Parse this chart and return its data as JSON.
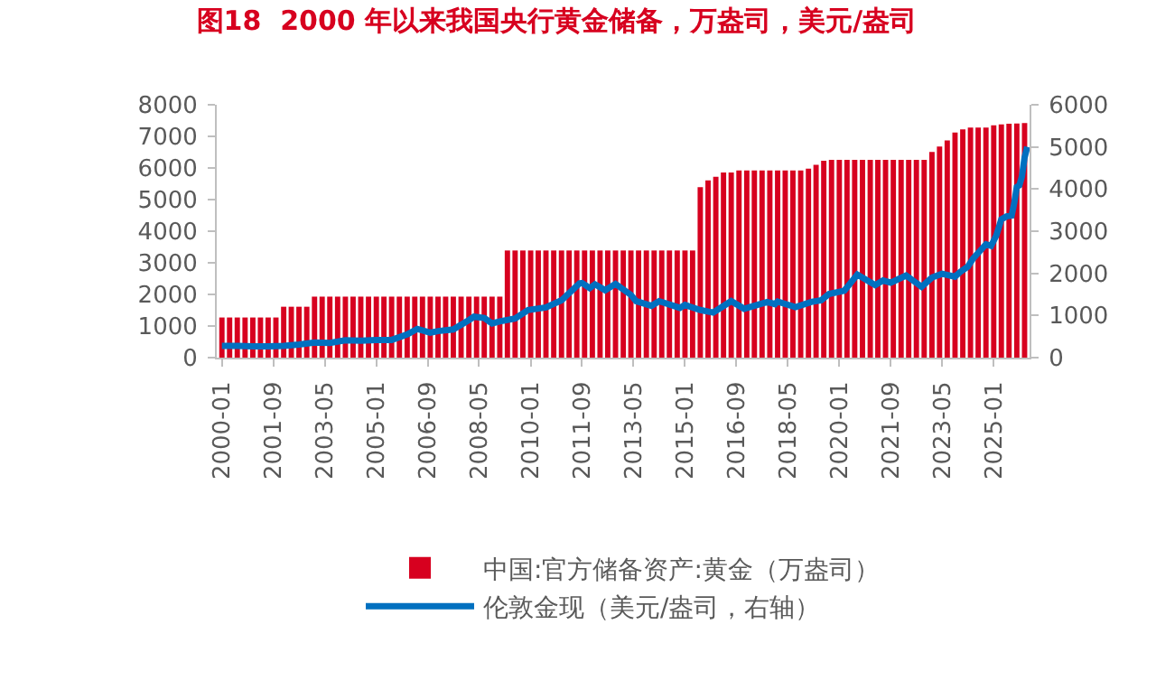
{
  "chart_data": {
    "type": "bar",
    "title": "图18  2000 年以来我国央行黄金储备，万盎司，美元/盎司",
    "xlim": [
      "1999-11",
      "2026-03"
    ],
    "xticks": [
      "2000-01",
      "2001-09",
      "2003-05",
      "2005-01",
      "2006-09",
      "2008-05",
      "2010-01",
      "2011-09",
      "2013-05",
      "2015-01",
      "2016-09",
      "2018-05",
      "2020-01",
      "2021-09",
      "2023-05",
      "2025-01"
    ],
    "ylim": [
      0,
      8000
    ],
    "yticks": [
      0,
      1000,
      2000,
      3000,
      4000,
      5000,
      6000,
      7000,
      8000
    ],
    "y2lim": [
      0,
      6000
    ],
    "y2ticks": [
      0,
      1000,
      2000,
      3000,
      4000,
      5000,
      6000
    ],
    "legend": "bottom",
    "series": [
      {
        "name": "中国:官方储备资产:黄金（万盎司）",
        "color": "#d7001f",
        "x": [
          "2000-01",
          "2000-04",
          "2000-07",
          "2000-10",
          "2001-01",
          "2001-04",
          "2001-07",
          "2001-10",
          "2002-01",
          "2002-04",
          "2002-07",
          "2002-10",
          "2003-01",
          "2003-04",
          "2003-07",
          "2003-10",
          "2004-01",
          "2004-04",
          "2004-07",
          "2004-10",
          "2005-01",
          "2005-04",
          "2005-07",
          "2005-10",
          "2006-01",
          "2006-04",
          "2006-07",
          "2006-10",
          "2007-01",
          "2007-04",
          "2007-07",
          "2007-10",
          "2008-01",
          "2008-04",
          "2008-07",
          "2008-10",
          "2009-01",
          "2009-04",
          "2009-07",
          "2009-10",
          "2010-01",
          "2010-04",
          "2010-07",
          "2010-10",
          "2011-01",
          "2011-04",
          "2011-07",
          "2011-10",
          "2012-01",
          "2012-04",
          "2012-07",
          "2012-10",
          "2013-01",
          "2013-04",
          "2013-07",
          "2013-10",
          "2014-01",
          "2014-04",
          "2014-07",
          "2014-10",
          "2015-01",
          "2015-04",
          "2015-07",
          "2015-10",
          "2016-01",
          "2016-04",
          "2016-07",
          "2016-10",
          "2017-01",
          "2017-04",
          "2017-07",
          "2017-10",
          "2018-01",
          "2018-04",
          "2018-07",
          "2018-10",
          "2019-01",
          "2019-04",
          "2019-07",
          "2019-10",
          "2020-01",
          "2020-04",
          "2020-07",
          "2020-10",
          "2021-01",
          "2021-04",
          "2021-07",
          "2021-10",
          "2022-01",
          "2022-04",
          "2022-07",
          "2022-10",
          "2023-01",
          "2023-04",
          "2023-07",
          "2023-10",
          "2024-01",
          "2024-04",
          "2024-07",
          "2024-10",
          "2025-01",
          "2025-04",
          "2025-07",
          "2025-10",
          "2026-01"
        ],
        "values": [
          1270,
          1270,
          1270,
          1270,
          1270,
          1270,
          1270,
          1270,
          1610,
          1610,
          1610,
          1610,
          1930,
          1930,
          1930,
          1930,
          1930,
          1930,
          1930,
          1930,
          1930,
          1930,
          1930,
          1930,
          1930,
          1930,
          1930,
          1930,
          1930,
          1930,
          1930,
          1930,
          1930,
          1930,
          1930,
          1930,
          1930,
          3390,
          3390,
          3390,
          3390,
          3390,
          3390,
          3390,
          3390,
          3390,
          3390,
          3390,
          3390,
          3390,
          3390,
          3390,
          3390,
          3390,
          3390,
          3390,
          3390,
          3390,
          3390,
          3390,
          3390,
          3390,
          5390,
          5610,
          5720,
          5860,
          5860,
          5920,
          5920,
          5920,
          5920,
          5920,
          5920,
          5920,
          5920,
          5920,
          5980,
          6100,
          6230,
          6260,
          6260,
          6260,
          6260,
          6260,
          6260,
          6260,
          6260,
          6260,
          6260,
          6260,
          6260,
          6260,
          6510,
          6680,
          6870,
          7120,
          7220,
          7280,
          7280,
          7280,
          7350,
          7380,
          7400,
          7410,
          7420
        ]
      },
      {
        "name": "伦敦金现（美元/盎司，右轴）",
        "type": "line",
        "axis": "y2",
        "color": "#0070c0",
        "line_style": "solid",
        "marker": "none",
        "x": [
          "2000-01",
          "2000-07",
          "2001-01",
          "2001-07",
          "2002-01",
          "2002-07",
          "2003-01",
          "2003-07",
          "2004-01",
          "2004-07",
          "2005-01",
          "2005-07",
          "2006-01",
          "2006-05",
          "2006-10",
          "2007-01",
          "2007-07",
          "2008-01",
          "2008-03",
          "2008-07",
          "2008-10",
          "2009-01",
          "2009-07",
          "2009-12",
          "2010-07",
          "2011-01",
          "2011-08",
          "2011-09",
          "2011-12",
          "2012-02",
          "2012-06",
          "2012-10",
          "2013-04",
          "2013-06",
          "2013-12",
          "2014-03",
          "2014-11",
          "2015-01",
          "2015-07",
          "2015-12",
          "2016-07",
          "2016-12",
          "2017-09",
          "2017-12",
          "2018-01",
          "2018-08",
          "2019-02",
          "2019-06",
          "2019-09",
          "2020-03",
          "2020-08",
          "2021-03",
          "2021-06",
          "2021-09",
          "2022-03",
          "2022-09",
          "2023-01",
          "2023-05",
          "2023-10",
          "2023-12",
          "2024-03",
          "2024-05",
          "2024-10",
          "2024-12",
          "2025-02",
          "2025-04",
          "2025-06",
          "2025-08",
          "2025-09",
          "2025-10",
          "2025-11",
          "2025-12",
          "2026-01",
          "2026-02"
        ],
        "values": [
          280,
          280,
          270,
          270,
          280,
          310,
          360,
          350,
          410,
          400,
          420,
          420,
          550,
          680,
          590,
          630,
          670,
          890,
          970,
          940,
          810,
          860,
          930,
          1130,
          1190,
          1360,
          1760,
          1770,
          1650,
          1740,
          1600,
          1750,
          1490,
          1340,
          1230,
          1340,
          1180,
          1250,
          1130,
          1070,
          1340,
          1160,
          1320,
          1270,
          1330,
          1200,
          1320,
          1360,
          1510,
          1590,
          1970,
          1720,
          1830,
          1780,
          1950,
          1680,
          1900,
          1990,
          1920,
          2030,
          2160,
          2350,
          2690,
          2650,
          2900,
          3280,
          3350,
          3370,
          3670,
          4050,
          4090,
          4300,
          4750,
          5000
        ]
      }
    ]
  }
}
